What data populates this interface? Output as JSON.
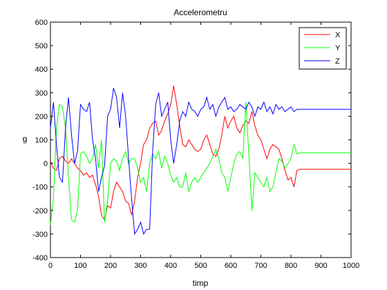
{
  "chart_data": {
    "type": "line",
    "title": "Accelerometru",
    "xlabel": "timp",
    "ylabel": "g",
    "xlim": [
      0,
      1000
    ],
    "ylim": [
      -400,
      600
    ],
    "x_ticks": [
      0,
      100,
      200,
      300,
      400,
      500,
      600,
      700,
      800,
      900,
      1000
    ],
    "y_ticks": [
      -400,
      -300,
      -200,
      -100,
      0,
      100,
      200,
      300,
      400,
      500,
      600
    ],
    "grid": false,
    "legend_position": "top-right",
    "series": [
      {
        "name": "X",
        "color": "#ff0000",
        "x": [
          0,
          10,
          20,
          30,
          40,
          50,
          60,
          70,
          80,
          90,
          100,
          110,
          120,
          130,
          140,
          150,
          160,
          170,
          180,
          190,
          200,
          210,
          220,
          230,
          240,
          250,
          260,
          270,
          280,
          290,
          300,
          310,
          320,
          330,
          340,
          350,
          360,
          370,
          380,
          390,
          400,
          410,
          420,
          430,
          440,
          450,
          460,
          470,
          480,
          490,
          500,
          510,
          520,
          530,
          540,
          550,
          560,
          570,
          580,
          590,
          600,
          610,
          620,
          630,
          640,
          650,
          660,
          670,
          680,
          690,
          700,
          710,
          720,
          730,
          740,
          750,
          760,
          770,
          780,
          790,
          800,
          810,
          820,
          830,
          840,
          850,
          860,
          870,
          880,
          890,
          900,
          910,
          920,
          930,
          940,
          950,
          960,
          970,
          980,
          990,
          1000
        ],
        "y": [
          10,
          -20,
          -30,
          20,
          30,
          10,
          0,
          20,
          0,
          -20,
          -30,
          -50,
          -40,
          -60,
          -50,
          -90,
          -140,
          -220,
          -240,
          -180,
          -190,
          -120,
          -80,
          -100,
          -120,
          -160,
          -170,
          -220,
          -160,
          -60,
          0,
          80,
          100,
          150,
          170,
          180,
          120,
          140,
          180,
          210,
          250,
          330,
          250,
          160,
          80,
          70,
          100,
          80,
          60,
          50,
          60,
          100,
          120,
          80,
          40,
          30,
          60,
          120,
          200,
          150,
          180,
          200,
          150,
          130,
          160,
          180,
          170,
          220,
          160,
          120,
          100,
          60,
          20,
          60,
          80,
          70,
          60,
          20,
          -30,
          -70,
          -60,
          -100,
          -30,
          -25,
          -25,
          -25,
          -25,
          -25,
          -25,
          -25,
          -25,
          -25,
          -25,
          -25,
          -25,
          -25,
          -25,
          -25,
          -25,
          -25,
          -25
        ]
      },
      {
        "name": "Y",
        "color": "#00ff00",
        "x": [
          0,
          10,
          20,
          30,
          40,
          50,
          60,
          70,
          80,
          90,
          100,
          110,
          120,
          130,
          140,
          150,
          160,
          170,
          180,
          190,
          200,
          210,
          220,
          230,
          240,
          250,
          260,
          270,
          280,
          290,
          300,
          310,
          320,
          330,
          340,
          350,
          360,
          370,
          380,
          390,
          400,
          410,
          420,
          430,
          440,
          450,
          460,
          470,
          480,
          490,
          500,
          510,
          520,
          530,
          540,
          550,
          560,
          570,
          580,
          590,
          600,
          610,
          620,
          630,
          640,
          650,
          660,
          670,
          680,
          690,
          700,
          710,
          720,
          730,
          740,
          750,
          760,
          770,
          780,
          790,
          800,
          810,
          820,
          830,
          840,
          850,
          860,
          870,
          880,
          890,
          900,
          910,
          920,
          930,
          940,
          950,
          960,
          970,
          980,
          990,
          1000
        ],
        "y": [
          -260,
          -150,
          150,
          250,
          240,
          150,
          -60,
          -240,
          -250,
          -200,
          40,
          50,
          30,
          0,
          20,
          80,
          -20,
          100,
          -250,
          -160,
          0,
          20,
          10,
          -30,
          20,
          50,
          0,
          20,
          20,
          -20,
          -80,
          -60,
          -120,
          0,
          40,
          20,
          50,
          -20,
          30,
          0,
          -50,
          -80,
          -60,
          -100,
          -100,
          -40,
          -120,
          -80,
          -60,
          -80,
          -60,
          -40,
          -20,
          0,
          30,
          60,
          20,
          -40,
          -60,
          -120,
          -60,
          0,
          40,
          50,
          20,
          260,
          40,
          -200,
          -40,
          -60,
          -80,
          -100,
          -60,
          -120,
          -100,
          -40,
          20,
          10,
          -20,
          0,
          20,
          80,
          40,
          45,
          45,
          45,
          45,
          45,
          45,
          45,
          45,
          45,
          45,
          45,
          45,
          45,
          45,
          45,
          45,
          45,
          45
        ]
      },
      {
        "name": "Z",
        "color": "#0000ff",
        "x": [
          0,
          10,
          20,
          30,
          40,
          50,
          60,
          70,
          80,
          90,
          100,
          110,
          120,
          130,
          140,
          150,
          160,
          170,
          180,
          190,
          200,
          210,
          220,
          230,
          240,
          250,
          260,
          270,
          280,
          290,
          300,
          310,
          320,
          330,
          340,
          350,
          360,
          370,
          380,
          390,
          400,
          410,
          420,
          430,
          440,
          450,
          460,
          470,
          480,
          490,
          500,
          510,
          520,
          530,
          540,
          550,
          560,
          570,
          580,
          590,
          600,
          610,
          620,
          630,
          640,
          650,
          660,
          670,
          680,
          690,
          700,
          710,
          720,
          730,
          740,
          750,
          760,
          770,
          780,
          790,
          800,
          810,
          820,
          830,
          840,
          850,
          860,
          870,
          880,
          890,
          900,
          910,
          920,
          930,
          940,
          950,
          960,
          970,
          980,
          990,
          1000
        ],
        "y": [
          150,
          260,
          80,
          -60,
          -80,
          150,
          280,
          120,
          0,
          50,
          250,
          230,
          220,
          260,
          100,
          20,
          -120,
          -60,
          -10,
          200,
          230,
          320,
          280,
          150,
          300,
          200,
          20,
          -150,
          -300,
          -280,
          -250,
          -300,
          -280,
          -280,
          50,
          250,
          300,
          200,
          230,
          260,
          100,
          0,
          80,
          180,
          220,
          200,
          260,
          230,
          220,
          200,
          230,
          240,
          280,
          230,
          250,
          200,
          240,
          260,
          280,
          230,
          240,
          220,
          230,
          250,
          240,
          230,
          260,
          240,
          200,
          240,
          230,
          260,
          220,
          240,
          210,
          250,
          230,
          240,
          220,
          230,
          240,
          220,
          230,
          230,
          230,
          230,
          230,
          230,
          230,
          230,
          230,
          230,
          230,
          230,
          230,
          230,
          230,
          230,
          230,
          230,
          230
        ]
      }
    ]
  }
}
